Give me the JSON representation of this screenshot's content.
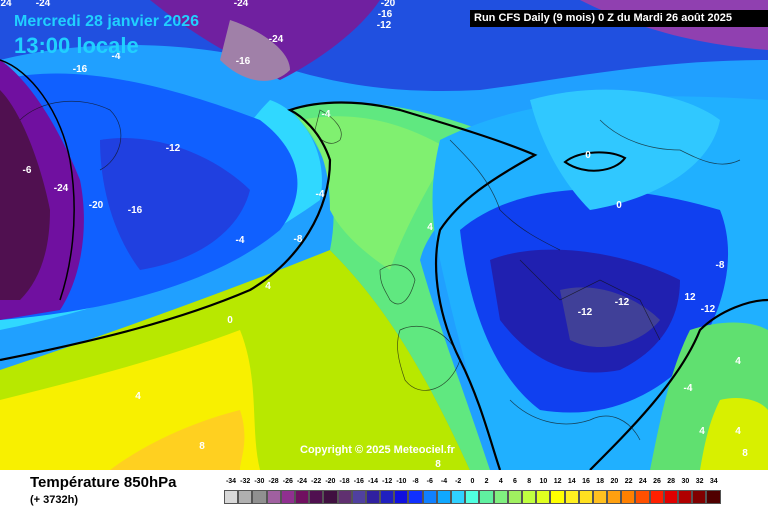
{
  "header": {
    "date": "Mercredi 28 janvier 2026",
    "time": "13:00 locale",
    "run": "Run CFS Daily (9 mois) 0 Z du Mardi 26 août 2025"
  },
  "map": {
    "copyright": "Copyright © 2025 Meteociel.fr",
    "contour_labels": [
      "24",
      "-24",
      "-24",
      "-20",
      "-16",
      "-12",
      "-24",
      "-16",
      "-16",
      "-4",
      "-6",
      "-24",
      "-20",
      "-16",
      "-12",
      "-4",
      "-8",
      "-4",
      "-4",
      "4",
      "0",
      "0",
      "-8",
      "-12",
      "-12",
      "-12",
      "-4",
      "0",
      "4",
      "4",
      "8",
      "8",
      "4",
      "4",
      "8",
      "12",
      "4"
    ]
  },
  "footer": {
    "title": "Température 850hPa",
    "subtitle": "(+ 3732h)"
  },
  "scale": {
    "values": [
      "-34",
      "-32",
      "-30",
      "-28",
      "-26",
      "-24",
      "-22",
      "-20",
      "-18",
      "-16",
      "-14",
      "-12",
      "-10",
      "-8",
      "-6",
      "-4",
      "-2",
      "0",
      "2",
      "4",
      "6",
      "8",
      "10",
      "12",
      "14",
      "16",
      "18",
      "20",
      "22",
      "24",
      "26",
      "28",
      "30",
      "32",
      "34"
    ],
    "colors": [
      "#d8d8d8",
      "#b0b0b0",
      "#909090",
      "#a060a0",
      "#903090",
      "#701060",
      "#501050",
      "#401040",
      "#603070",
      "#5040a0",
      "#3020a0",
      "#2020c0",
      "#1010e0",
      "#1030ff",
      "#1080ff",
      "#10a8ff",
      "#30d0ff",
      "#50ffe0",
      "#60f0a0",
      "#80f080",
      "#a0f060",
      "#c0ff40",
      "#e0ff20",
      "#ffff00",
      "#fff020",
      "#ffe020",
      "#ffc020",
      "#ffa010",
      "#ff8000",
      "#ff5000",
      "#ff2000",
      "#e00000",
      "#b00000",
      "#800000",
      "#500000"
    ]
  }
}
